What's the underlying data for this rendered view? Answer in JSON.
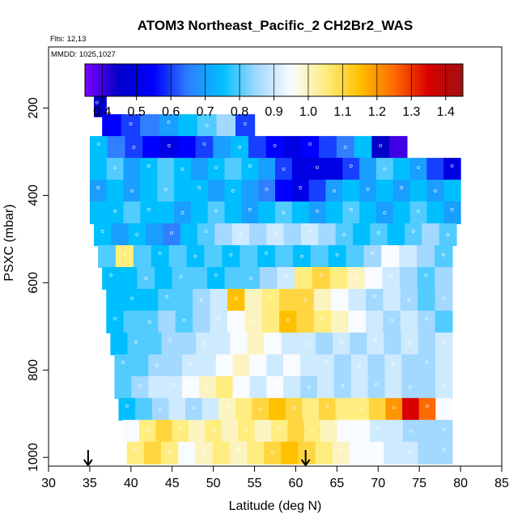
{
  "chart_data": {
    "type": "heatmap",
    "title": "ATOM3 Northeast_Pacific_2 CH2Br2_WAS",
    "flights_label": "Flts: 12,13",
    "dates_label": "MMDD: 1025,1027",
    "xlabel": "Latitude (deg N)",
    "ylabel": "PSXC (mbar)",
    "xlim": [
      30,
      85
    ],
    "ylim": [
      1020,
      60
    ],
    "x_ticks": [
      30,
      35,
      40,
      45,
      50,
      55,
      60,
      65,
      70,
      75,
      80,
      85
    ],
    "y_ticks": [
      200,
      400,
      600,
      800,
      1000
    ],
    "colorbar": {
      "range": [
        0.35,
        1.45
      ],
      "ticks": [
        0.4,
        0.5,
        0.6,
        0.7,
        0.8,
        0.9,
        1.0,
        1.1,
        1.2,
        1.3,
        1.4
      ],
      "tick_labels": [
        "0.4",
        "0.5",
        "0.6",
        "0.7",
        "0.8",
        "0.9",
        "1.0",
        "1.1",
        "1.2",
        "1.3",
        "1.4"
      ],
      "stops": [
        {
          "v": 0.35,
          "color": "#7f00ff"
        },
        {
          "v": 0.45,
          "color": "#0000c8"
        },
        {
          "v": 0.55,
          "color": "#0000ff"
        },
        {
          "v": 0.65,
          "color": "#2f7fff"
        },
        {
          "v": 0.75,
          "color": "#00bfff"
        },
        {
          "v": 0.85,
          "color": "#a3d8ff"
        },
        {
          "v": 0.95,
          "color": "#f8fbff"
        },
        {
          "v": 1.05,
          "color": "#ffed80"
        },
        {
          "v": 1.15,
          "color": "#ffc000"
        },
        {
          "v": 1.25,
          "color": "#ff6a00"
        },
        {
          "v": 1.35,
          "color": "#d80000"
        },
        {
          "v": 1.45,
          "color": "#a01010"
        }
      ]
    },
    "arrows_latitude": [
      34.8,
      61.2
    ],
    "rows": [
      {
        "p": 195,
        "x0": 35.5,
        "x1": 37.0,
        "v": [
          0.45,
          0.45
        ]
      },
      {
        "p": 240,
        "x0": 36.5,
        "x1": 55.0,
        "v": [
          0.55,
          0.6,
          0.65,
          0.7,
          0.75,
          0.8,
          0.85,
          0.6
        ]
      },
      {
        "p": 290,
        "x0": 35.0,
        "x1": 73.5,
        "v": [
          0.75,
          0.65,
          0.6,
          0.55,
          0.5,
          0.55,
          0.6,
          0.7,
          0.75,
          0.6,
          0.55,
          0.5,
          0.55,
          0.6,
          0.65,
          0.75,
          0.45,
          0.4
        ]
      },
      {
        "p": 340,
        "x0": 35.0,
        "x1": 80.0,
        "v": [
          0.75,
          0.8,
          0.7,
          0.75,
          0.8,
          0.75,
          0.7,
          0.75,
          0.8,
          0.75,
          0.7,
          0.6,
          0.5,
          0.5,
          0.5,
          0.6,
          0.7,
          0.8,
          0.75,
          0.7,
          0.6,
          0.5
        ]
      },
      {
        "p": 390,
        "x0": 35.0,
        "x1": 80.0,
        "v": [
          0.7,
          0.75,
          0.7,
          0.75,
          0.8,
          0.75,
          0.75,
          0.7,
          0.75,
          0.7,
          0.65,
          0.55,
          0.5,
          0.6,
          0.7,
          0.75,
          0.7,
          0.75,
          0.7,
          0.75,
          0.7,
          0.75
        ]
      },
      {
        "p": 440,
        "x0": 35.0,
        "x1": 80.0,
        "v": [
          0.75,
          0.75,
          0.8,
          0.75,
          0.75,
          0.7,
          0.75,
          0.8,
          0.75,
          0.7,
          0.75,
          0.8,
          0.75,
          0.7,
          0.75,
          0.8,
          0.75,
          0.7,
          0.75,
          0.8,
          0.75,
          0.7
        ]
      },
      {
        "p": 490,
        "x0": 35.5,
        "x1": 79.5,
        "v": [
          0.75,
          0.7,
          0.75,
          0.7,
          0.65,
          0.75,
          0.8,
          0.85,
          0.9,
          0.85,
          0.9,
          0.85,
          0.9,
          0.85,
          0.8,
          0.75,
          0.8,
          0.75,
          0.8,
          0.85,
          0.8
        ]
      },
      {
        "p": 540,
        "x0": 36.0,
        "x1": 79.0,
        "v": [
          0.8,
          1.05,
          0.8,
          0.75,
          0.8,
          0.75,
          0.8,
          0.75,
          0.8,
          0.75,
          0.8,
          0.75,
          0.8,
          0.75,
          0.8,
          0.85,
          0.95,
          0.9,
          0.85,
          0.8
        ]
      },
      {
        "p": 590,
        "x0": 36.5,
        "x1": 79.0,
        "v": [
          0.75,
          0.75,
          0.8,
          0.75,
          0.8,
          0.8,
          0.75,
          0.8,
          0.8,
          0.85,
          0.9,
          1.05,
          1.1,
          1.05,
          1.0,
          0.95,
          0.9,
          0.85,
          0.8,
          0.85
        ]
      },
      {
        "p": 640,
        "x0": 37.0,
        "x1": 79.0,
        "v": [
          0.75,
          0.75,
          0.75,
          0.8,
          0.8,
          0.85,
          0.9,
          1.15,
          1.0,
          1.05,
          1.1,
          1.1,
          1.0,
          0.95,
          0.9,
          0.85,
          0.9,
          0.85,
          0.8,
          0.85
        ]
      },
      {
        "p": 690,
        "x0": 37.0,
        "x1": 79.0,
        "v": [
          0.75,
          0.8,
          0.8,
          0.85,
          0.8,
          0.85,
          0.9,
          0.95,
          1.0,
          1.05,
          1.15,
          1.1,
          1.05,
          1.0,
          0.95,
          0.9,
          0.85,
          0.9,
          0.85,
          0.8
        ]
      },
      {
        "p": 740,
        "x0": 37.5,
        "x1": 79.0,
        "v": [
          0.75,
          0.8,
          0.8,
          0.85,
          0.85,
          0.9,
          0.9,
          0.95,
          1.0,
          0.95,
          0.9,
          0.9,
          0.85,
          0.9,
          0.85,
          0.9,
          0.85,
          0.9,
          0.85,
          0.9
        ]
      },
      {
        "p": 790,
        "x0": 38.0,
        "x1": 79.0,
        "v": [
          0.8,
          0.8,
          0.85,
          0.85,
          0.9,
          0.9,
          0.95,
          1.0,
          0.95,
          0.9,
          0.95,
          0.9,
          0.9,
          0.85,
          0.9,
          0.85,
          0.9,
          0.85,
          0.85,
          0.9
        ]
      },
      {
        "p": 840,
        "x0": 38.0,
        "x1": 79.0,
        "v": [
          0.8,
          0.85,
          0.9,
          0.9,
          0.95,
          1.0,
          1.05,
          0.95,
          0.9,
          0.95,
          0.9,
          0.85,
          0.9,
          0.85,
          0.9,
          0.85,
          0.9,
          0.85,
          0.85,
          0.9
        ]
      },
      {
        "p": 890,
        "x0": 38.5,
        "x1": 79.0,
        "v": [
          0.75,
          0.8,
          0.85,
          0.9,
          0.85,
          0.9,
          1.0,
          1.05,
          1.1,
          1.15,
          1.1,
          1.05,
          1.1,
          1.05,
          1.05,
          1.1,
          1.2,
          1.35,
          1.25,
          0.95
        ]
      },
      {
        "p": 940,
        "x0": 39.0,
        "x1": 79.0,
        "v": [
          0.95,
          1.05,
          1.1,
          1.05,
          1.0,
          1.05,
          1.0,
          1.05,
          1.0,
          1.05,
          1.1,
          1.05,
          1.0,
          0.95,
          0.95,
          0.9,
          0.9,
          0.85,
          0.85,
          0.85
        ]
      },
      {
        "p": 990,
        "x0": 39.5,
        "x1": 79.0,
        "v": [
          1.05,
          1.1,
          1.05,
          0.95,
          1.0,
          1.05,
          1.0,
          1.05,
          1.1,
          1.15,
          1.1,
          1.05,
          1.0,
          0.95,
          0.95,
          0.9,
          0.9,
          0.85,
          0.85
        ]
      }
    ]
  }
}
